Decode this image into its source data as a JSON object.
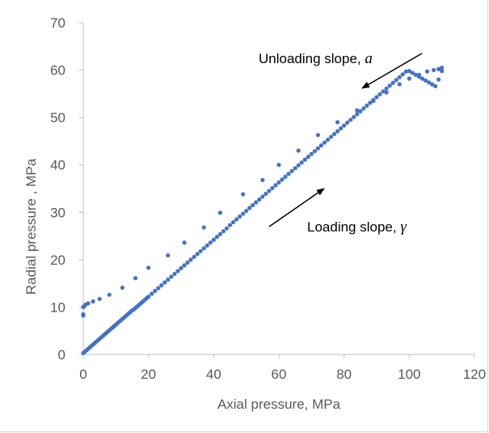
{
  "chart_data": {
    "type": "scatter",
    "title": "",
    "xlabel": "Axial pressure, MPa",
    "ylabel": "Radial pressure , MPa",
    "xlim": [
      0,
      120
    ],
    "ylim": [
      0,
      70
    ],
    "xticks": [
      0,
      20,
      40,
      60,
      80,
      100,
      120
    ],
    "yticks": [
      0,
      10,
      20,
      30,
      40,
      50,
      60,
      70
    ],
    "grid": false,
    "legend": "none",
    "marker_color": "#4472c4",
    "series": [
      {
        "points": [
          [
            0,
            0.3
          ],
          [
            0.5,
            0.6
          ],
          [
            1,
            0.9
          ],
          [
            1.5,
            1.2
          ],
          [
            2,
            1.5
          ],
          [
            2.5,
            1.8
          ],
          [
            3,
            2.1
          ],
          [
            3.5,
            2.4
          ],
          [
            4,
            2.7
          ],
          [
            4.5,
            3.0
          ],
          [
            5,
            3.3
          ],
          [
            5.5,
            3.6
          ],
          [
            6,
            3.9
          ],
          [
            6.5,
            4.2
          ],
          [
            7,
            4.5
          ],
          [
            7.5,
            4.8
          ],
          [
            8,
            5.1
          ],
          [
            8.5,
            5.4
          ],
          [
            9,
            5.7
          ],
          [
            9.5,
            6.0
          ],
          [
            10,
            6.3
          ],
          [
            10.5,
            6.6
          ],
          [
            11,
            6.9
          ],
          [
            11.5,
            7.2
          ],
          [
            12,
            7.5
          ],
          [
            12.5,
            7.8
          ],
          [
            13,
            8.1
          ],
          [
            13.5,
            8.4
          ],
          [
            14,
            8.7
          ],
          [
            14.5,
            9.0
          ],
          [
            15,
            9.3
          ],
          [
            15.5,
            9.5
          ],
          [
            16,
            9.8
          ],
          [
            16.5,
            10.1
          ],
          [
            17,
            10.4
          ],
          [
            17.5,
            10.7
          ],
          [
            18,
            11.0
          ],
          [
            18.5,
            11.3
          ],
          [
            19,
            11.6
          ],
          [
            19.5,
            11.9
          ],
          [
            20,
            12.2
          ],
          [
            21,
            12.8
          ],
          [
            22,
            13.4
          ],
          [
            23,
            14.0
          ],
          [
            24,
            14.6
          ],
          [
            25,
            15.2
          ],
          [
            26,
            15.8
          ],
          [
            27,
            16.4
          ],
          [
            28,
            17.0
          ],
          [
            29,
            17.6
          ],
          [
            30,
            18.2
          ],
          [
            31,
            18.8
          ],
          [
            32,
            19.4
          ],
          [
            33,
            20.0
          ],
          [
            34,
            20.6
          ],
          [
            35,
            21.2
          ],
          [
            36,
            21.8
          ],
          [
            37,
            22.4
          ],
          [
            38,
            23.0
          ],
          [
            39,
            23.6
          ],
          [
            40,
            24.2
          ],
          [
            41,
            24.8
          ],
          [
            42,
            25.4
          ],
          [
            43,
            26.0
          ],
          [
            44,
            26.6
          ],
          [
            45,
            27.3
          ],
          [
            46,
            27.9
          ],
          [
            47,
            28.5
          ],
          [
            48,
            29.1
          ],
          [
            49,
            29.7
          ],
          [
            50,
            30.3
          ],
          [
            51,
            30.9
          ],
          [
            52,
            31.5
          ],
          [
            53,
            32.1
          ],
          [
            54,
            32.7
          ],
          [
            55,
            33.3
          ],
          [
            56,
            33.9
          ],
          [
            57,
            34.5
          ],
          [
            58,
            35.1
          ],
          [
            59,
            35.7
          ],
          [
            60,
            36.3
          ],
          [
            61,
            36.9
          ],
          [
            62,
            37.5
          ],
          [
            63,
            38.1
          ],
          [
            64,
            38.7
          ],
          [
            65,
            39.3
          ],
          [
            66,
            39.9
          ],
          [
            67,
            40.5
          ],
          [
            68,
            41.1
          ],
          [
            69,
            41.7
          ],
          [
            70,
            42.3
          ],
          [
            71,
            42.9
          ],
          [
            72,
            43.5
          ],
          [
            73,
            44.1
          ],
          [
            74,
            44.7
          ],
          [
            75,
            45.3
          ],
          [
            76,
            45.9
          ],
          [
            77,
            46.5
          ],
          [
            78,
            47.1
          ],
          [
            79,
            47.7
          ],
          [
            80,
            48.3
          ],
          [
            81,
            48.9
          ],
          [
            82,
            49.5
          ],
          [
            83,
            50.1
          ],
          [
            84,
            50.7
          ],
          [
            85,
            51.3
          ],
          [
            86,
            51.9
          ],
          [
            87,
            52.5
          ],
          [
            88,
            53.1
          ],
          [
            89,
            53.7
          ],
          [
            90,
            54.3
          ],
          [
            91,
            54.9
          ],
          [
            92,
            55.5
          ],
          [
            93,
            56.1
          ],
          [
            94,
            56.7
          ],
          [
            95,
            57.3
          ],
          [
            96,
            57.9
          ],
          [
            97,
            58.5
          ],
          [
            98,
            59.1
          ],
          [
            99,
            59.7
          ],
          [
            100,
            59.8
          ],
          [
            101,
            59.4
          ],
          [
            102,
            59.0
          ],
          [
            103,
            58.6
          ],
          [
            104,
            58.2
          ],
          [
            105,
            57.8
          ],
          [
            106,
            57.4
          ],
          [
            107,
            57.0
          ],
          [
            108,
            56.6
          ],
          [
            109,
            58.0
          ],
          [
            110,
            59.8
          ]
        ]
      },
      {
        "points": [
          [
            110,
            60.5
          ],
          [
            109,
            60.2
          ],
          [
            107.5,
            60.0
          ],
          [
            105.5,
            59.7
          ],
          [
            103,
            59.0
          ],
          [
            100,
            58.2
          ],
          [
            97,
            57.0
          ],
          [
            93,
            55.3
          ],
          [
            89,
            53.5
          ],
          [
            84,
            51.5
          ],
          [
            78,
            49.0
          ],
          [
            72,
            46.3
          ],
          [
            66,
            43.0
          ],
          [
            60,
            40.0
          ],
          [
            55,
            36.8
          ],
          [
            49,
            33.8
          ],
          [
            42,
            29.9
          ],
          [
            37,
            26.8
          ],
          [
            31,
            23.6
          ],
          [
            26,
            20.9
          ],
          [
            20,
            18.3
          ],
          [
            16,
            16.1
          ],
          [
            12,
            14.1
          ],
          [
            8,
            12.6
          ],
          [
            5,
            11.7
          ],
          [
            3,
            11.2
          ],
          [
            1.5,
            10.8
          ],
          [
            0.7,
            10.5
          ],
          [
            0.3,
            10.2
          ],
          [
            0,
            10.0
          ],
          [
            0,
            8.5
          ],
          [
            0,
            8.2
          ]
        ]
      }
    ],
    "annotations": [
      {
        "text": "Unloading slope, ",
        "symbol": "a"
      },
      {
        "text": "Loading slope, ",
        "symbol": "γ"
      }
    ]
  }
}
